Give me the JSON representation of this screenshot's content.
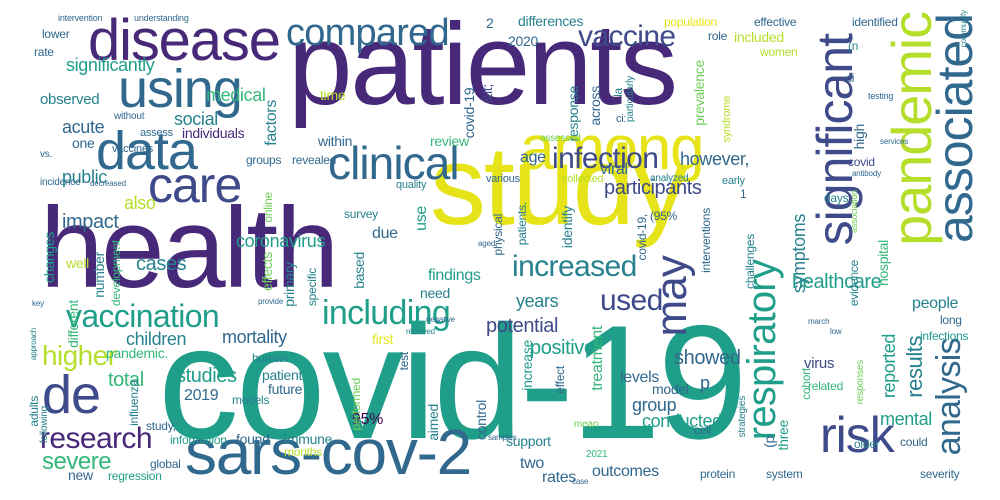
{
  "words": [
    {
      "text": "covid-19",
      "color_class": "c5"
    },
    {
      "text": "patients",
      "color_class": "c1"
    },
    {
      "text": "health",
      "color_class": "c1"
    },
    {
      "text": "study",
      "color_class": "c9"
    },
    {
      "text": "sars-cov-2",
      "color_class": "c3"
    },
    {
      "text": "among",
      "color_class": "c9"
    },
    {
      "text": "disease",
      "color_class": "c1"
    },
    {
      "text": "using",
      "color_class": "c3"
    },
    {
      "text": "data",
      "color_class": "c3"
    },
    {
      "text": "clinical",
      "color_class": "c3"
    },
    {
      "text": "care",
      "color_class": "c2"
    },
    {
      "text": "compared",
      "color_class": "c3"
    },
    {
      "text": "pandemic",
      "color_class": "c8"
    },
    {
      "text": "significant",
      "color_class": "c2"
    },
    {
      "text": "associated",
      "color_class": "c3"
    },
    {
      "text": "risk",
      "color_class": "c2"
    },
    {
      "text": "de",
      "color_class": "c2"
    },
    {
      "text": "research",
      "color_class": "c1"
    },
    {
      "text": "vaccine",
      "color_class": "c2"
    },
    {
      "text": "infection",
      "color_class": "c2"
    },
    {
      "text": "may",
      "color_class": "c2"
    },
    {
      "text": "vaccination",
      "color_class": "c5"
    },
    {
      "text": "including",
      "color_class": "c5"
    },
    {
      "text": "higher",
      "color_class": "c8"
    },
    {
      "text": "respiratory",
      "color_class": "c5"
    },
    {
      "text": "increased",
      "color_class": "c4"
    },
    {
      "text": "used",
      "color_class": "c2"
    },
    {
      "text": "analysis",
      "color_class": "c3"
    },
    {
      "text": "severe",
      "color_class": "c6"
    },
    {
      "text": "healthcare",
      "color_class": "c5"
    },
    {
      "text": "symptoms",
      "color_class": "c4"
    },
    {
      "text": "results",
      "color_class": "c4"
    },
    {
      "text": "participants",
      "color_class": "c2"
    },
    {
      "text": "potential",
      "color_class": "c2"
    },
    {
      "text": "positive",
      "color_class": "c5"
    },
    {
      "text": "showed",
      "color_class": "c3"
    },
    {
      "text": "coronavirus",
      "color_class": "c5"
    },
    {
      "text": "cases",
      "color_class": "c4"
    },
    {
      "text": "impact",
      "color_class": "c3"
    },
    {
      "text": "public",
      "color_class": "c4"
    },
    {
      "text": "acute",
      "color_class": "c3"
    },
    {
      "text": "social",
      "color_class": "c4"
    },
    {
      "text": "medical",
      "color_class": "c6"
    },
    {
      "text": "significantly",
      "color_class": "c5"
    },
    {
      "text": "observed",
      "color_class": "c4"
    },
    {
      "text": "children",
      "color_class": "c4"
    },
    {
      "text": "mortality",
      "color_class": "c3"
    },
    {
      "text": "total",
      "color_class": "c6"
    },
    {
      "text": "studies",
      "color_class": "c5"
    },
    {
      "text": "2019",
      "color_class": "c3"
    },
    {
      "text": "pandemic.",
      "color_class": "c6"
    },
    {
      "text": "findings",
      "color_class": "c5"
    },
    {
      "text": "years",
      "color_class": "c4"
    },
    {
      "text": "95%",
      "color_class": "c0"
    },
    {
      "text": "group",
      "color_class": "c3"
    },
    {
      "text": "conducted",
      "color_class": "c5"
    },
    {
      "text": "levels",
      "color_class": "c3"
    },
    {
      "text": "two",
      "color_class": "c3"
    },
    {
      "text": "support",
      "color_class": "c4"
    },
    {
      "text": "outcomes",
      "color_class": "c3"
    },
    {
      "text": "rates",
      "color_class": "c3"
    },
    {
      "text": "new",
      "color_class": "c3"
    },
    {
      "text": "found",
      "color_class": "c3"
    },
    {
      "text": "immune",
      "color_class": "c4"
    },
    {
      "text": "future",
      "color_class": "c3"
    },
    {
      "text": "patient",
      "color_class": "c4"
    },
    {
      "text": "human",
      "color_class": "c4"
    },
    {
      "text": "model",
      "color_class": "c3"
    },
    {
      "text": "p",
      "color_class": "c3"
    },
    {
      "text": "virus",
      "color_class": "c2"
    },
    {
      "text": "mental",
      "color_class": "c5"
    },
    {
      "text": "reported",
      "color_class": "c5"
    },
    {
      "text": "people",
      "color_class": "c4"
    },
    {
      "text": "however,",
      "color_class": "c3"
    },
    {
      "text": "viral",
      "color_class": "c3"
    },
    {
      "text": "age",
      "color_class": "c3"
    },
    {
      "text": "also",
      "color_class": "c8"
    },
    {
      "text": "due",
      "color_class": "c3"
    },
    {
      "text": "use",
      "color_class": "c5"
    },
    {
      "text": "factors",
      "color_class": "c4"
    },
    {
      "text": "within",
      "color_class": "c3"
    },
    {
      "text": "individuals",
      "color_class": "c1"
    },
    {
      "text": "review",
      "color_class": "c6"
    },
    {
      "text": "time",
      "color_class": "c8"
    },
    {
      "text": "effects",
      "color_class": "c7"
    },
    {
      "text": "primary",
      "color_class": "c4"
    },
    {
      "text": "number",
      "color_class": "c4"
    },
    {
      "text": "based",
      "color_class": "c4"
    },
    {
      "text": "need",
      "color_class": "c4"
    },
    {
      "text": "first",
      "color_class": "c9"
    },
    {
      "text": "high",
      "color_class": "c3"
    },
    {
      "text": "hospital",
      "color_class": "c6"
    },
    {
      "text": "2020",
      "color_class": "c3"
    },
    {
      "text": "differences",
      "color_class": "c4"
    },
    {
      "text": "included",
      "color_class": "c8"
    },
    {
      "text": "identified",
      "color_class": "c3"
    },
    {
      "text": "prevalence",
      "color_class": "c7"
    },
    {
      "text": "treatment",
      "color_class": "c6"
    },
    {
      "text": "increase",
      "color_class": "c5"
    },
    {
      "text": "control",
      "color_class": "c3"
    },
    {
      "text": "aimed",
      "color_class": "c4"
    },
    {
      "text": "three",
      "color_class": "c5"
    },
    {
      "text": "identify",
      "color_class": "c4"
    },
    {
      "text": "across",
      "color_class": "c3"
    },
    {
      "text": "response",
      "color_class": "c4"
    },
    {
      "text": "covid-19.",
      "color_class": "c3"
    },
    {
      "text": "&lt;",
      "color_class": "c2"
    },
    {
      "text": "one",
      "color_class": "c3"
    },
    {
      "text": "different",
      "color_class": "c6"
    },
    {
      "text": "changes",
      "color_class": "c5"
    },
    {
      "text": "well",
      "color_class": "c8"
    },
    {
      "text": "2",
      "color_class": "c3"
    },
    {
      "text": "rate",
      "color_class": "c3"
    },
    {
      "text": "lower",
      "color_class": "c3"
    },
    {
      "text": "population",
      "color_class": "c9"
    },
    {
      "text": "effective",
      "color_class": "c3"
    },
    {
      "text": "role",
      "color_class": "c3"
    },
    {
      "text": "women",
      "color_class": "c8"
    },
    {
      "text": "ci",
      "color_class": "c3"
    },
    {
      "text": "(n",
      "color_class": "c4"
    },
    {
      "text": "la",
      "color_class": "c4"
    },
    {
      "text": "(p",
      "color_class": "c3"
    },
    {
      "text": "covid",
      "color_class": "c2"
    },
    {
      "text": "days",
      "color_class": "c4"
    },
    {
      "text": "(95%",
      "color_class": "c3"
    },
    {
      "text": "global",
      "color_class": "c3"
    },
    {
      "text": "regression",
      "color_class": "c5"
    },
    {
      "text": "information",
      "color_class": "c5"
    },
    {
      "text": "months",
      "color_class": "c8"
    },
    {
      "text": "influenza",
      "color_class": "c4"
    },
    {
      "text": "adults",
      "color_class": "c4"
    },
    {
      "text": "models",
      "color_class": "c4"
    },
    {
      "text": "study,",
      "color_class": "c3"
    },
    {
      "text": "performed",
      "color_class": "c7"
    },
    {
      "text": "test",
      "color_class": "c3"
    },
    {
      "text": "effect",
      "color_class": "c3"
    },
    {
      "text": "cell",
      "color_class": "c3"
    },
    {
      "text": "related",
      "color_class": "c6"
    },
    {
      "text": "older",
      "color_class": "c4"
    },
    {
      "text": "could",
      "color_class": "c3"
    },
    {
      "text": "protein",
      "color_class": "c3"
    },
    {
      "text": "system",
      "color_class": "c3"
    },
    {
      "text": "severity",
      "color_class": "c3"
    },
    {
      "text": "2021",
      "color_class": "c6"
    },
    {
      "text": "infections",
      "color_class": "c5"
    },
    {
      "text": "long",
      "color_class": "c3"
    },
    {
      "text": "cohort",
      "color_class": "c6"
    },
    {
      "text": "evidence",
      "color_class": "c4"
    },
    {
      "text": "challenges",
      "color_class": "c4"
    },
    {
      "text": "interventions",
      "color_class": "c3"
    },
    {
      "text": "covid-19,",
      "color_class": "c3"
    },
    {
      "text": "patients.",
      "color_class": "c4"
    },
    {
      "text": "physical",
      "color_class": "c3"
    },
    {
      "text": "survey",
      "color_class": "c4"
    },
    {
      "text": "specific",
      "color_class": "c4"
    },
    {
      "text": "online",
      "color_class": "c7"
    },
    {
      "text": "development",
      "color_class": "c6"
    },
    {
      "text": "groups",
      "color_class": "c3"
    },
    {
      "text": "revealed",
      "color_class": "c3"
    },
    {
      "text": "quality",
      "color_class": "c4"
    },
    {
      "text": "collected",
      "color_class": "c8"
    },
    {
      "text": "various",
      "color_class": "c3"
    },
    {
      "text": "analyzed",
      "color_class": "c4"
    },
    {
      "text": "early",
      "color_class": "c4"
    },
    {
      "text": "assess",
      "color_class": "c3"
    },
    {
      "text": "vaccines",
      "color_class": "c3"
    },
    {
      "text": "assessed",
      "color_class": "c7"
    },
    {
      "text": "syndrome",
      "color_class": "c8"
    },
    {
      "text": "particularly",
      "color_class": "c4"
    },
    {
      "text": "ci:",
      "color_class": "c3"
    },
    {
      "text": "without",
      "color_class": "c3"
    },
    {
      "text": "vs.",
      "color_class": "c3"
    },
    {
      "text": "incidence",
      "color_class": "c3"
    },
    {
      "text": "decreased",
      "color_class": "c3"
    },
    {
      "text": "testing",
      "color_class": "c3"
    },
    {
      "text": "services",
      "color_class": "c3"
    },
    {
      "text": "community",
      "color_class": "c4"
    },
    {
      "text": "antibody",
      "color_class": "c3"
    },
    {
      "text": "association",
      "color_class": "c7"
    },
    {
      "text": "march",
      "color_class": "c3"
    },
    {
      "text": "low",
      "color_class": "c3"
    },
    {
      "text": "responses",
      "color_class": "c7"
    },
    {
      "text": "strategies",
      "color_class": "c4"
    },
    {
      "text": "mean",
      "color_class": "c7"
    },
    {
      "text": "negative",
      "color_class": "c3"
    },
    {
      "text": "received",
      "color_class": "c4"
    },
    {
      "text": "provide",
      "color_class": "c3"
    },
    {
      "text": "key",
      "color_class": "c3"
    },
    {
      "text": "approach",
      "color_class": "c4"
    },
    {
      "text": "following",
      "color_class": "c4"
    },
    {
      "text": "aged",
      "color_class": "c3"
    },
    {
      "text": "samples",
      "color_class": "c3"
    },
    {
      "text": "case",
      "color_class": "c3"
    },
    {
      "text": "1",
      "color_class": "c3"
    },
    {
      "text": "intervention",
      "color_class": "c3"
    },
    {
      "text": "understanding",
      "color_class": "c3"
    }
  ]
}
